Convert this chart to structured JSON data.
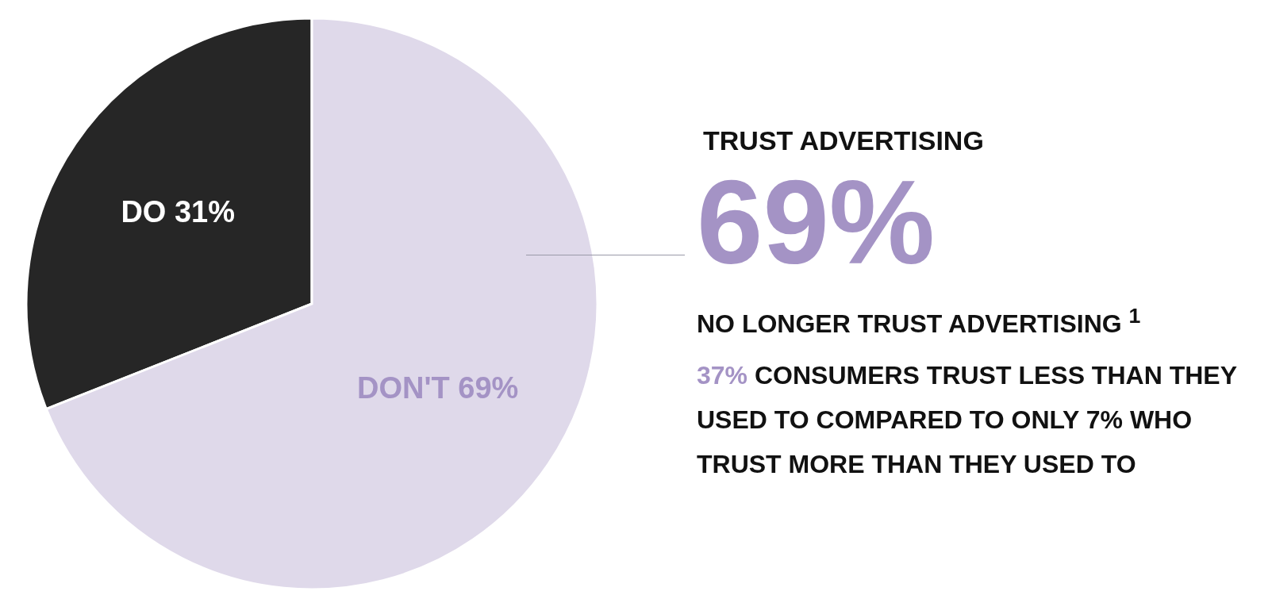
{
  "chart_data": {
    "type": "pie",
    "title": "TRUST ADVERTISING",
    "categories": [
      "DO",
      "DON'T"
    ],
    "values": [
      31,
      69
    ],
    "value_labels": [
      "31%",
      "69%"
    ],
    "colors": [
      "#262626",
      "#dfd9ea"
    ],
    "legend": false,
    "annotations": [
      "69%",
      "NO LONGER TRUST ADVERTISING $^{1}$",
      "37% CONSUMERS TRUST LESS THAN THEY USED TO COMPARED TO ONLY 7% WHO TRUST MORE THAN THEY USED TO"
    ]
  }
}
